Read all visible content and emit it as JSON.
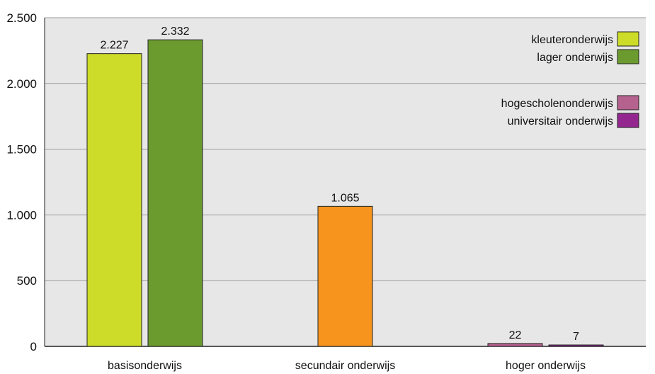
{
  "chart_data": {
    "type": "bar",
    "categories": [
      "basisonderwijs",
      "secundair onderwijs",
      "hoger onderwijs"
    ],
    "ylim": [
      0,
      2500
    ],
    "yticks": [
      0,
      500,
      1000,
      1500,
      2000,
      2500
    ],
    "ytick_labels": [
      "0",
      "500",
      "1.000",
      "1.500",
      "2.000",
      "2.500"
    ],
    "grid": true,
    "bars": [
      {
        "category": "basisonderwijs",
        "series": "kleuteronderwijs",
        "value": 2227,
        "label": "2.227",
        "color": "#cddc29"
      },
      {
        "category": "basisonderwijs",
        "series": "lager onderwijs",
        "value": 2332,
        "label": "2.332",
        "color": "#6b9b2f"
      },
      {
        "category": "secundair onderwijs",
        "series": "",
        "value": 1065,
        "label": "1.065",
        "color": "#f7941d"
      },
      {
        "category": "hoger onderwijs",
        "series": "hogescholenonderwijs",
        "value": 22,
        "label": "22",
        "color": "#b5628f"
      },
      {
        "category": "hoger onderwijs",
        "series": "universitair onderwijs",
        "value": 7,
        "label": "7",
        "color": "#93278f"
      }
    ],
    "legend": {
      "placement": "top-right",
      "groups": [
        [
          {
            "name": "kleuteronderwijs",
            "color": "#cddc29"
          },
          {
            "name": "lager onderwijs",
            "color": "#6b9b2f"
          }
        ],
        [
          {
            "name": "hogescholenonderwijs",
            "color": "#b5628f"
          },
          {
            "name": "universitair onderwijs",
            "color": "#93278f"
          }
        ]
      ]
    },
    "plot_background": "#e7e7e7",
    "gridline_color": "#9a9a9a"
  }
}
